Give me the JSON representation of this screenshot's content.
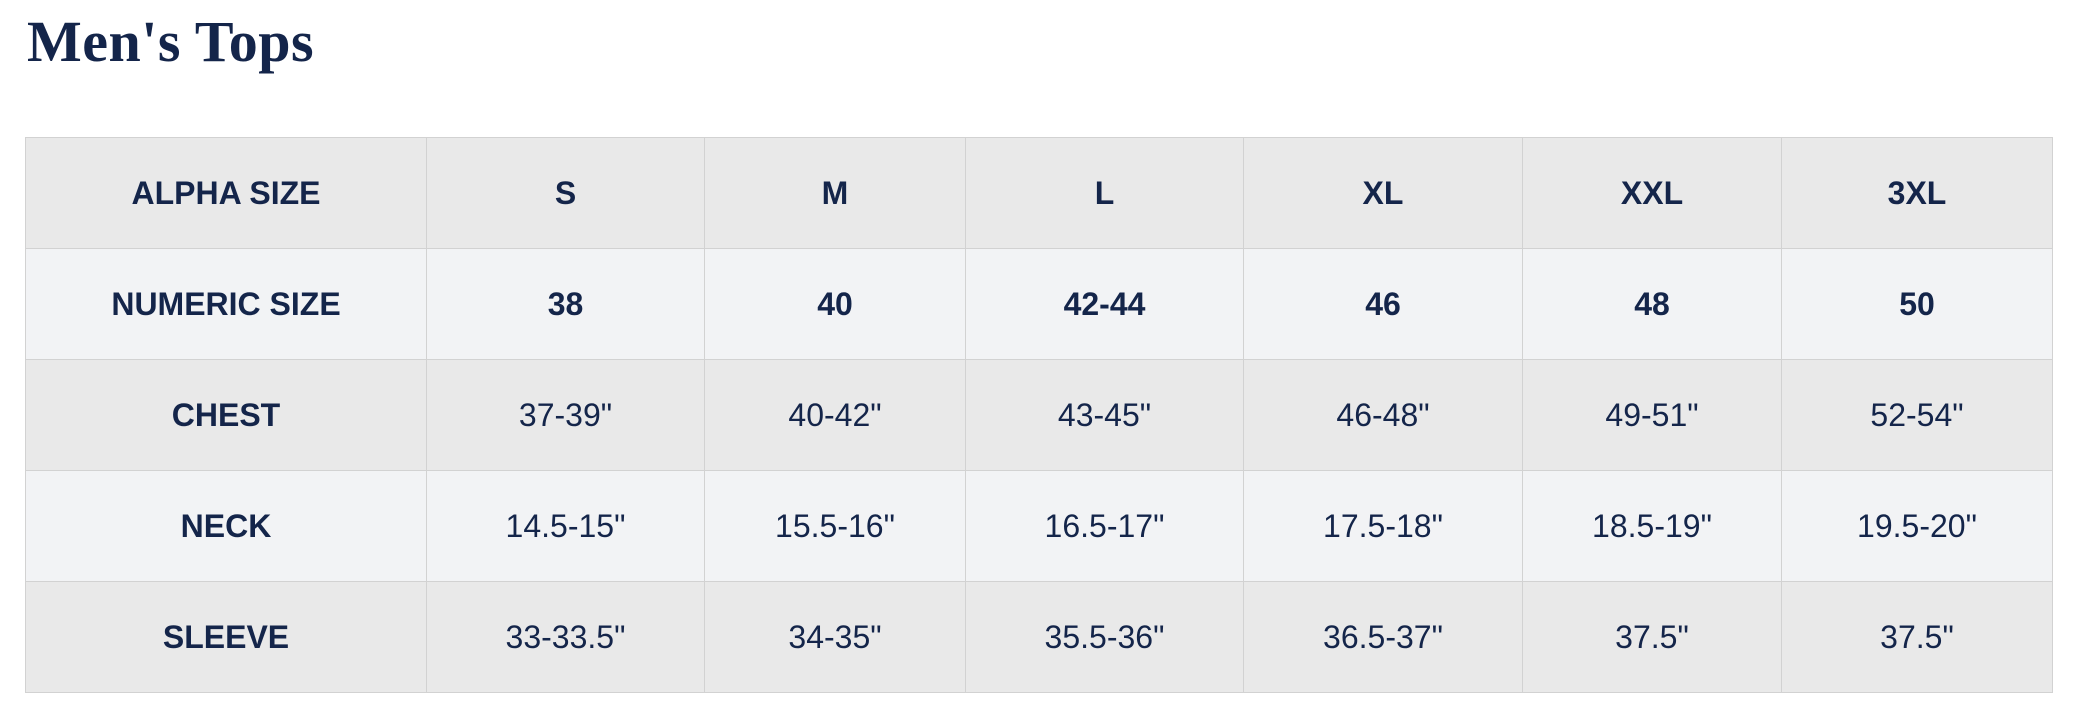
{
  "title": "Men's Tops",
  "table": {
    "rows": [
      {
        "label": "ALPHA SIZE",
        "values": [
          "S",
          "M",
          "L",
          "XL",
          "XXL",
          "3XL"
        ],
        "bold": true
      },
      {
        "label": "NUMERIC SIZE",
        "values": [
          "38",
          "40",
          "42-44",
          "46",
          "48",
          "50"
        ],
        "bold": true
      },
      {
        "label": "CHEST",
        "values": [
          "37-39\"",
          "40-42\"",
          "43-45\"",
          "46-48\"",
          "49-51\"",
          "52-54\""
        ],
        "bold": false
      },
      {
        "label": "NECK",
        "values": [
          "14.5-15\"",
          "15.5-16\"",
          "16.5-17\"",
          "17.5-18\"",
          "18.5-19\"",
          "19.5-20\""
        ],
        "bold": false
      },
      {
        "label": "SLEEVE",
        "values": [
          "33-33.5\"",
          "34-35\"",
          "35.5-36\"",
          "36.5-37\"",
          "37.5\"",
          "37.5\""
        ],
        "bold": false
      }
    ]
  },
  "colors": {
    "text": "#14254a",
    "row_odd": "#e9e9e9",
    "row_even": "#f2f3f5",
    "border": "#d2d2d2"
  }
}
